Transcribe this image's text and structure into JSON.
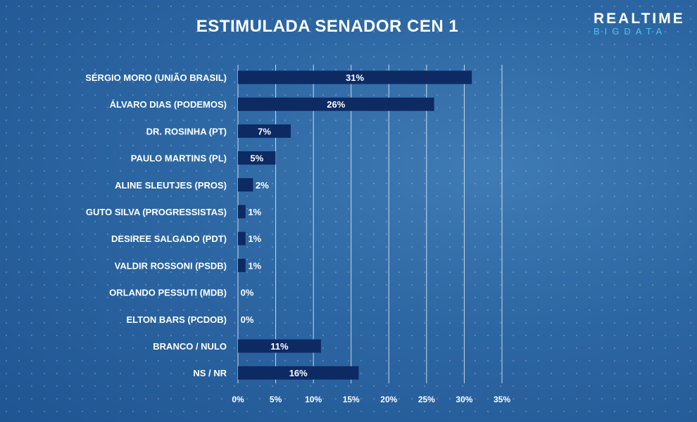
{
  "header": {
    "title": "ESTIMULADA SENADOR CEN 1",
    "logo_line1": "REALTIME",
    "logo_line2": "BIGDATA"
  },
  "chart_data": {
    "type": "bar",
    "orientation": "horizontal",
    "title": "ESTIMULADA SENADOR CEN 1",
    "categories": [
      "SÉRGIO MORO (UNIÃO BRASIL)",
      "ÁLVARO DIAS (PODEMOS)",
      "DR. ROSINHA (PT)",
      "PAULO MARTINS (PL)",
      "ALINE SLEUTJES (PROS)",
      "GUTO SILVA (PROGRESSISTAS)",
      "DESIREE SALGADO (PDT)",
      "VALDIR ROSSONI (PSDB)",
      "ORLANDO PESSUTI (MDB)",
      "ELTON BARS (PCDOB)",
      "BRANCO / NULO",
      "NS / NR"
    ],
    "values": [
      31,
      26,
      7,
      5,
      2,
      1,
      1,
      1,
      0,
      0,
      11,
      16
    ],
    "value_labels": [
      "31%",
      "26%",
      "7%",
      "5%",
      "2%",
      "1%",
      "1%",
      "1%",
      "0%",
      "0%",
      "11%",
      "16%"
    ],
    "xlim": [
      0,
      35
    ],
    "x_ticks": [
      0,
      5,
      10,
      15,
      20,
      25,
      30,
      35
    ],
    "x_tick_labels": [
      "0%",
      "5%",
      "10%",
      "15%",
      "20%",
      "25%",
      "30%",
      "35%"
    ],
    "grid": true,
    "bar_color": "#0d2a63"
  }
}
